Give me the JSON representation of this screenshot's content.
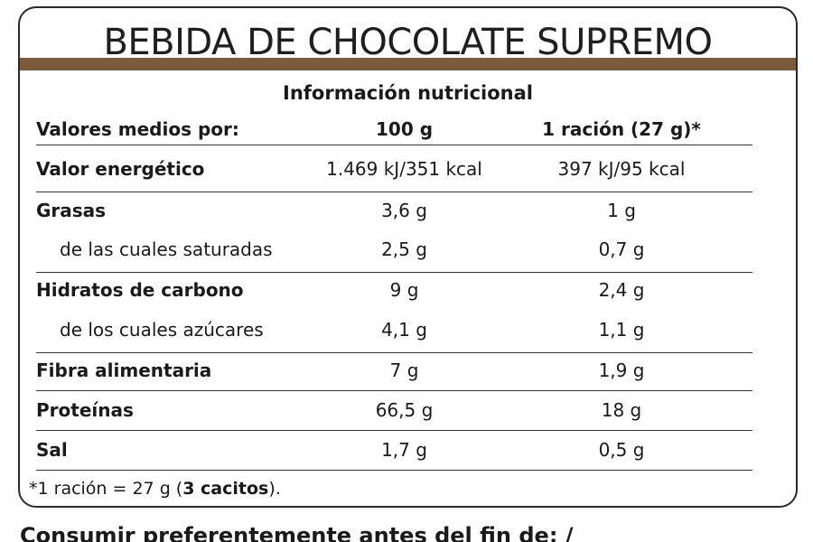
{
  "label": {
    "product_name": "BEBIDA DE CHOCOLATE SUPREMO",
    "table_title": "Información nutricional",
    "header": {
      "label": "Valores medios por:",
      "col_100g": "100 g",
      "col_portion": "1 ración (27 g)*"
    },
    "rows": [
      {
        "name": "Valor energético",
        "per100": "1.469 kJ/351 kcal",
        "perPortion": "397 kJ/95 kcal"
      },
      {
        "name": "Grasas",
        "per100": "3,6 g",
        "perPortion": "1 g"
      },
      {
        "name": "de las cuales saturadas",
        "per100": "2,5 g",
        "perPortion": "0,7 g"
      },
      {
        "name": "Hidratos de carbono",
        "per100": "9 g",
        "perPortion": "2,4 g"
      },
      {
        "name": "de los cuales azúcares",
        "per100": "4,1 g",
        "perPortion": "1,1 g"
      },
      {
        "name": "Fibra alimentaria",
        "per100": "7 g",
        "perPortion": "1,9 g"
      },
      {
        "name": "Proteínas",
        "per100": "66,5 g",
        "perPortion": "18 g"
      },
      {
        "name": "Sal",
        "per100": "1,7 g",
        "perPortion": "0,5 g"
      }
    ],
    "footnote": {
      "prefix": "*1 ración = 27 g (",
      "bold": "3 cacitos",
      "suffix": ")."
    },
    "best_before": "Consumir preferentemente antes del fin de: /"
  },
  "colors": {
    "band": "#7a5a3a",
    "border": "#2a2a2a",
    "text": "#1a1a1a"
  }
}
